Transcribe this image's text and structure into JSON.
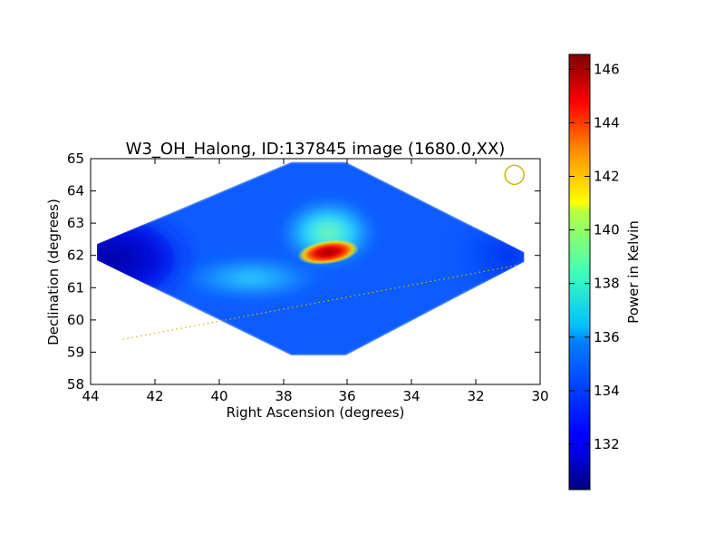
{
  "chart_data": {
    "type": "heatmap",
    "title": "W3_OH_Halong, ID:137845 image (1680.0,XX)",
    "xlabel": "Right Ascension (degrees)",
    "ylabel": "Declination (degrees)",
    "xlim": [
      44,
      30
    ],
    "ylim": [
      58,
      65
    ],
    "x_inverted": true,
    "grid": false,
    "x_ticks": [
      "44",
      "42",
      "40",
      "38",
      "36",
      "34",
      "32",
      "30"
    ],
    "y_ticks": [
      "58",
      "59",
      "60",
      "61",
      "62",
      "63",
      "64",
      "65"
    ],
    "colormap": "jet",
    "colorbar": {
      "label": "Power in Kelvin",
      "range": [
        130.3,
        146.6
      ],
      "ticks": [
        "132",
        "134",
        "136",
        "138",
        "140",
        "142",
        "144",
        "146"
      ]
    },
    "map_region": {
      "ra_range": [
        30.5,
        43.8
      ],
      "dec_range": [
        58.9,
        64.9
      ],
      "background_level": 133.5,
      "features": [
        {
          "name": "central peak",
          "ra": 36.6,
          "dec": 62.1,
          "value": 146.0
        },
        {
          "name": "halo above peak",
          "ra": 36.6,
          "dec": 62.7,
          "value": 137.0
        },
        {
          "name": "western arm",
          "ra": 39.0,
          "dec": 61.3,
          "value": 136.0
        },
        {
          "name": "eastern edge",
          "ra": 31.0,
          "dec": 62.0,
          "value": 132.5
        },
        {
          "name": "western edge",
          "ra": 43.3,
          "dec": 61.9,
          "value": 130.5
        }
      ]
    },
    "beam_marker": {
      "ra": 30.8,
      "dec": 64.5,
      "color": "#c8b400"
    },
    "scan_path": {
      "color": "#c8b400",
      "style": "dotted",
      "start": [
        43.0,
        59.4
      ],
      "end": [
        30.7,
        61.7
      ]
    }
  }
}
